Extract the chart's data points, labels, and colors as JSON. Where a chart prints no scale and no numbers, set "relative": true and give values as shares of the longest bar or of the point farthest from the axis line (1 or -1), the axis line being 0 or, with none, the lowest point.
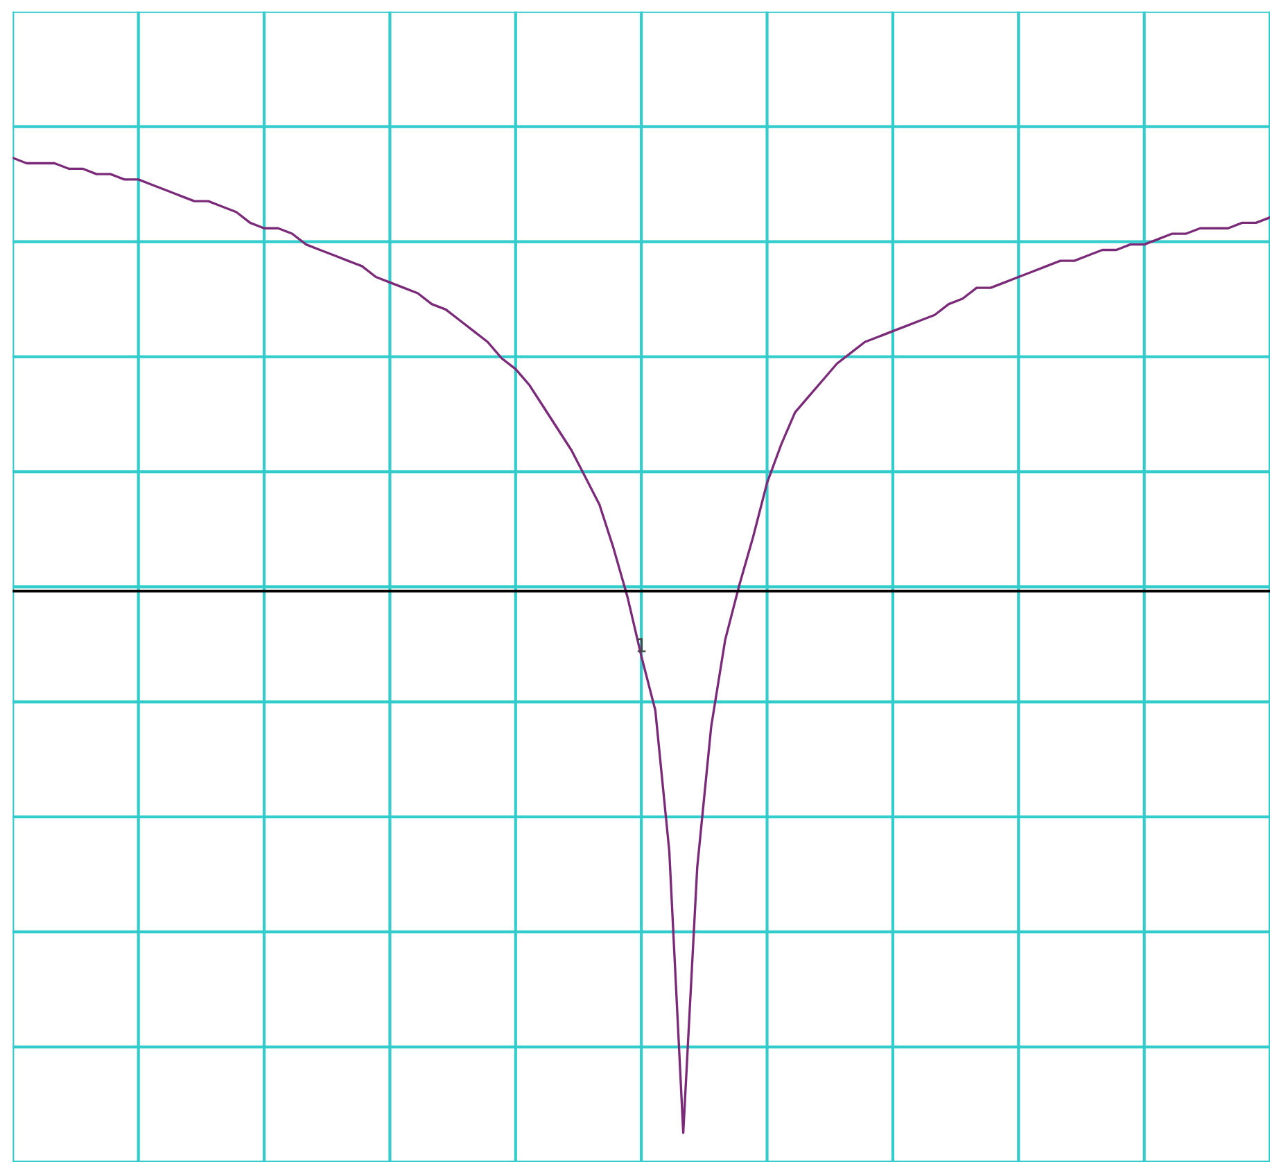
{
  "chart_data": {
    "type": "line",
    "relative": true,
    "categories": [
      null,
      null,
      null,
      null,
      null,
      null,
      null,
      null,
      null,
      null,
      null,
      null,
      null,
      null,
      null,
      null,
      null,
      null,
      null,
      null,
      null,
      null,
      null,
      null,
      null,
      null,
      null,
      null,
      null,
      null,
      null,
      null,
      null,
      null,
      null,
      null,
      null,
      null,
      null,
      null,
      null,
      null,
      null,
      null,
      null,
      null,
      null,
      null,
      null,
      null,
      null,
      null,
      null,
      null,
      null,
      null,
      null,
      null,
      null,
      null,
      null,
      null,
      null,
      null,
      null,
      null,
      null,
      null,
      null,
      null,
      null,
      null,
      null,
      null,
      null,
      null,
      null,
      null,
      null,
      null,
      null,
      null,
      null,
      null,
      null,
      null,
      null,
      null,
      null,
      null,
      null
    ],
    "series": [
      {
        "color": "#7a2a78",
        "values": [
          0.8,
          0.79,
          0.79,
          0.79,
          0.78,
          0.78,
          0.77,
          0.77,
          0.76,
          0.76,
          0.75,
          0.74,
          0.73,
          0.72,
          0.72,
          0.71,
          0.7,
          0.68,
          0.67,
          0.67,
          0.66,
          0.64,
          0.63,
          0.62,
          0.61,
          0.6,
          0.58,
          0.57,
          0.56,
          0.55,
          0.53,
          0.52,
          0.5,
          0.48,
          0.46,
          0.43,
          0.41,
          0.38,
          0.34,
          0.3,
          0.26,
          0.21,
          0.16,
          0.08,
          -0.01,
          -0.12,
          -0.22,
          -0.48,
          -1,
          -0.51,
          -0.25,
          -0.09,
          0.01,
          0.1,
          0.2,
          0.27,
          0.33,
          0.36,
          0.39,
          0.42,
          0.44,
          0.46,
          0.47,
          0.48,
          0.49,
          0.5,
          0.51,
          0.53,
          0.54,
          0.56,
          0.56,
          0.57,
          0.58,
          0.59,
          0.6,
          0.61,
          0.61,
          0.62,
          0.63,
          0.63,
          0.64,
          0.64,
          0.65,
          0.66,
          0.66,
          0.67,
          0.67,
          0.67,
          0.68,
          0.68,
          0.69
        ]
      }
    ],
    "ref_lines": [
      {
        "axis": "y",
        "value": 0,
        "color": "#000000"
      }
    ],
    "annotations": [
      {
        "text": "1",
        "y": -0.12
      }
    ],
    "grid": true
  }
}
